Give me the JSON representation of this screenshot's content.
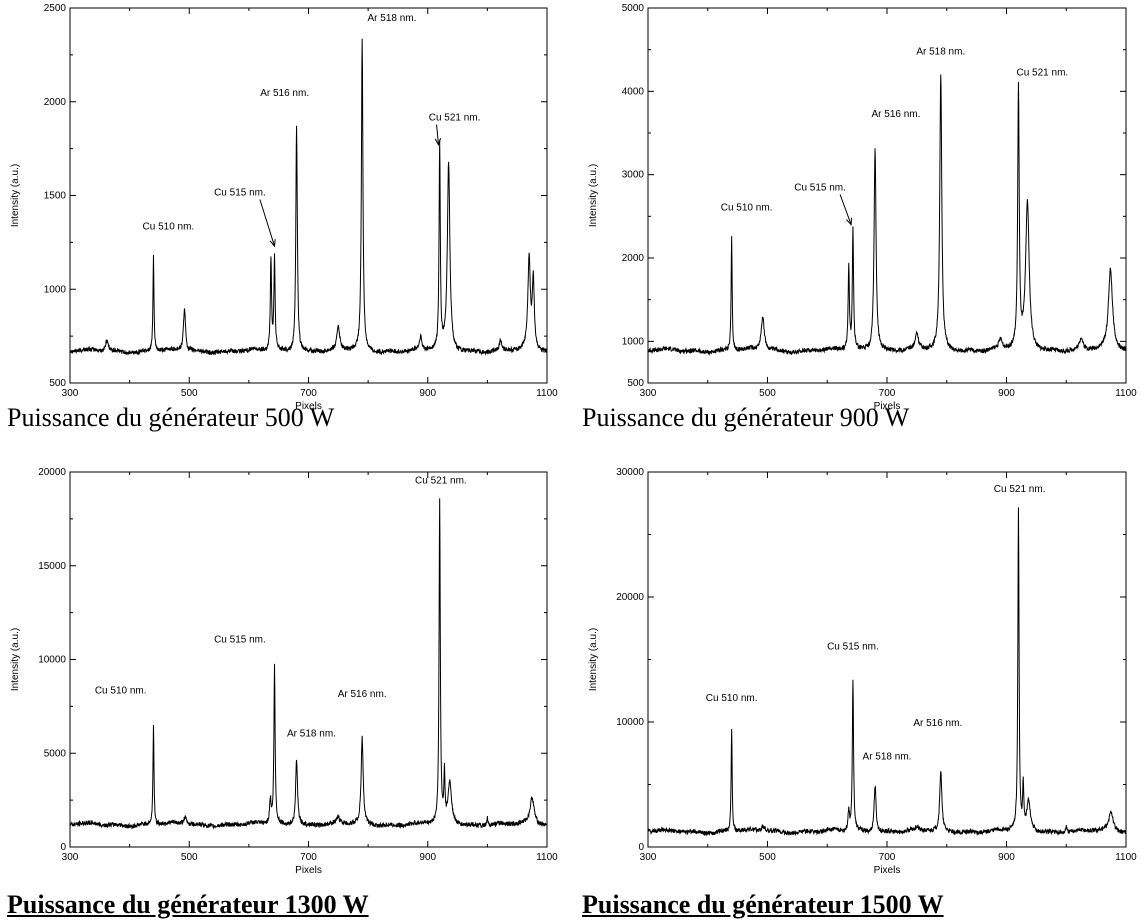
{
  "captions": [
    "Puissance du générateur 500 W",
    "Puissance du générateur 900 W",
    "Puissance du générateur 1300 W",
    "Puissance du générateur 1500 W"
  ],
  "colors": {
    "line": "#000000",
    "background": "#ffffff"
  },
  "chart_data": [
    {
      "type": "line",
      "xlabel": "Pixels",
      "ylabel": "Intensity (a.u.)",
      "xlim": [
        300,
        1100
      ],
      "ylim": [
        500,
        2500
      ],
      "xticks": [
        300,
        500,
        700,
        900,
        1100
      ],
      "yticks": [
        500,
        1000,
        1500,
        2000,
        2500
      ],
      "baseline": 670,
      "peaks": [
        {
          "x": 362,
          "y": 730,
          "w": 3
        },
        {
          "x": 440,
          "y": 1180,
          "w": 1
        },
        {
          "x": 492,
          "y": 900,
          "w": 2
        },
        {
          "x": 637,
          "y": 1165,
          "w": 1.2
        },
        {
          "x": 643,
          "y": 1165,
          "w": 1.2
        },
        {
          "x": 680,
          "y": 1885,
          "w": 1.5
        },
        {
          "x": 750,
          "y": 800,
          "w": 2.5
        },
        {
          "x": 790,
          "y": 2340,
          "w": 1.5
        },
        {
          "x": 888,
          "y": 740,
          "w": 2
        },
        {
          "x": 920,
          "y": 1760,
          "w": 1.2
        },
        {
          "x": 935,
          "y": 1670,
          "w": 2.5
        },
        {
          "x": 1022,
          "y": 720,
          "w": 2
        },
        {
          "x": 1070,
          "y": 1150,
          "w": 2.5
        },
        {
          "x": 1077,
          "y": 1040,
          "w": 2
        }
      ],
      "annotations": [
        {
          "text": "Cu 510 nm.",
          "x": 465,
          "y": 1320
        },
        {
          "text": "Cu 515 nm.",
          "x": 585,
          "y": 1500,
          "arrow": [
            643,
            1230
          ]
        },
        {
          "text": "Ar 516 nm.",
          "x": 660,
          "y": 2030
        },
        {
          "text": "Ar 518 nm.",
          "x": 840,
          "y": 2430
        },
        {
          "text": "Cu 521 nm.",
          "x": 945,
          "y": 1900,
          "arrow": [
            918,
            1770
          ]
        }
      ]
    },
    {
      "type": "line",
      "xlabel": "Pixels",
      "ylabel": "Intensity (a.u.)",
      "xlim": [
        300,
        1100
      ],
      "ylim": [
        500,
        5000
      ],
      "xticks": [
        300,
        500,
        700,
        900,
        1100
      ],
      "yticks": [
        1000,
        2000,
        3000,
        4000,
        5000
      ],
      "baseline": 890,
      "peaks": [
        {
          "x": 440,
          "y": 2240,
          "w": 1
        },
        {
          "x": 492,
          "y": 1300,
          "w": 3
        },
        {
          "x": 636,
          "y": 1910,
          "w": 1.2
        },
        {
          "x": 643,
          "y": 2350,
          "w": 1.2
        },
        {
          "x": 680,
          "y": 3310,
          "w": 2
        },
        {
          "x": 750,
          "y": 1080,
          "w": 3
        },
        {
          "x": 790,
          "y": 4190,
          "w": 2
        },
        {
          "x": 890,
          "y": 1000,
          "w": 3
        },
        {
          "x": 920,
          "y": 4010,
          "w": 1.5
        },
        {
          "x": 935,
          "y": 2660,
          "w": 3.5
        },
        {
          "x": 1025,
          "y": 1030,
          "w": 3
        },
        {
          "x": 1074,
          "y": 1860,
          "w": 4
        }
      ],
      "annotations": [
        {
          "text": "Cu 510 nm.",
          "x": 465,
          "y": 2570
        },
        {
          "text": "Cu 515 nm.",
          "x": 588,
          "y": 2810,
          "arrow": [
            640,
            2400
          ]
        },
        {
          "text": "Ar 516 nm.",
          "x": 715,
          "y": 3690
        },
        {
          "text": "Ar 518 nm.",
          "x": 790,
          "y": 4440
        },
        {
          "text": "Cu 521 nm.",
          "x": 960,
          "y": 4190
        }
      ]
    },
    {
      "type": "line",
      "xlabel": "Pixels",
      "ylabel": "Intensity (a.u.)",
      "xlim": [
        300,
        1100
      ],
      "ylim": [
        0,
        20000
      ],
      "xticks": [
        300,
        500,
        700,
        900,
        1100
      ],
      "yticks": [
        0,
        5000,
        10000,
        15000,
        20000
      ],
      "baseline": 1200,
      "peaks": [
        {
          "x": 440,
          "y": 6600,
          "w": 1
        },
        {
          "x": 493,
          "y": 1600,
          "w": 3
        },
        {
          "x": 636,
          "y": 2500,
          "w": 1.5
        },
        {
          "x": 643,
          "y": 9600,
          "w": 1.2
        },
        {
          "x": 680,
          "y": 4700,
          "w": 2
        },
        {
          "x": 750,
          "y": 1500,
          "w": 3
        },
        {
          "x": 790,
          "y": 5800,
          "w": 2
        },
        {
          "x": 920,
          "y": 18500,
          "w": 1.2
        },
        {
          "x": 928,
          "y": 3800,
          "w": 1
        },
        {
          "x": 937,
          "y": 3400,
          "w": 3.5
        },
        {
          "x": 1000,
          "y": 1600,
          "w": 1
        },
        {
          "x": 1075,
          "y": 2600,
          "w": 4
        }
      ],
      "annotations": [
        {
          "text": "Cu 510 nm.",
          "x": 385,
          "y": 8200
        },
        {
          "text": "Cu 515 nm.",
          "x": 585,
          "y": 10900
        },
        {
          "text": "Ar 518 nm.",
          "x": 705,
          "y": 5900
        },
        {
          "text": "Ar 516 nm.",
          "x": 790,
          "y": 8000
        },
        {
          "text": "Cu 521 nm.",
          "x": 922,
          "y": 19400
        }
      ]
    },
    {
      "type": "line",
      "xlabel": "Pixels",
      "ylabel": "Intensity (a.u.)",
      "xlim": [
        300,
        1100
      ],
      "ylim": [
        0,
        30000
      ],
      "xticks": [
        300,
        500,
        700,
        900,
        1100
      ],
      "yticks": [
        0,
        10000,
        20000,
        30000
      ],
      "baseline": 1250,
      "peaks": [
        {
          "x": 440,
          "y": 9500,
          "w": 1
        },
        {
          "x": 493,
          "y": 1700,
          "w": 3
        },
        {
          "x": 636,
          "y": 2700,
          "w": 1.5
        },
        {
          "x": 643,
          "y": 13300,
          "w": 1.2
        },
        {
          "x": 680,
          "y": 5000,
          "w": 2
        },
        {
          "x": 750,
          "y": 1500,
          "w": 3
        },
        {
          "x": 790,
          "y": 6100,
          "w": 2
        },
        {
          "x": 920,
          "y": 26800,
          "w": 1.2
        },
        {
          "x": 928,
          "y": 4800,
          "w": 1
        },
        {
          "x": 937,
          "y": 3600,
          "w": 3.5
        },
        {
          "x": 1000,
          "y": 1800,
          "w": 1
        },
        {
          "x": 1075,
          "y": 2800,
          "w": 4
        }
      ],
      "annotations": [
        {
          "text": "Cu 510 nm.",
          "x": 440,
          "y": 11700
        },
        {
          "text": "Cu 515 nm.",
          "x": 643,
          "y": 15800
        },
        {
          "text": "Ar 518 nm.",
          "x": 700,
          "y": 7000
        },
        {
          "text": "Ar 516 nm.",
          "x": 785,
          "y": 9700
        },
        {
          "text": "Cu 521 nm.",
          "x": 922,
          "y": 28400
        }
      ]
    }
  ]
}
